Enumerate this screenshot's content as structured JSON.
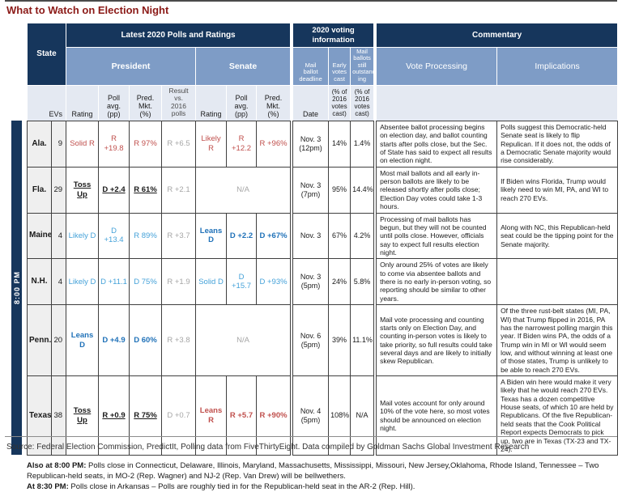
{
  "title": "What to Watch on Election Night",
  "colors": {
    "header_dark_navy": "#16365C",
    "header_medium_blue": "#7E9CC6",
    "header_light_blue": "#E4E9F2",
    "republican_red": "#C0504D",
    "democrat_blue": "#45A2D9",
    "democrat_blue_bold": "#1F71B8",
    "muted_gray": "#A6A6A6",
    "title_red": "#8B1A17",
    "state_column_gray": "#EFEFEF"
  },
  "table": {
    "time_label": "8:00 PM",
    "header": {
      "state": "State",
      "polls_group": "Latest 2020 Polls and Ratings",
      "voting_group": "2020 voting\ninformation",
      "commentary_group": "Commentary",
      "president": "President",
      "senate": "Senate",
      "mail_deadline": "Mail\nballot\ndeadline",
      "early_votes": "Early\nvotes\ncast",
      "mail_outstanding": "Mail\nballots\nstill\noutstand\ning",
      "vote_processing": "Vote Processing",
      "implications": "Implications",
      "evs": "EVs",
      "rating": "Rating",
      "poll_avg": "Poll avg.\n(pp)",
      "pred_mkt": "Pred. Mkt.\n(%)",
      "result_vs": "Result vs.\n2016 polls",
      "date": "Date",
      "pct_of_2016": "(% of\n2016\nvotes\ncast)"
    },
    "rows": [
      {
        "state": "Ala.",
        "evs": "9",
        "p_rating": "Solid R",
        "p_poll": "R +19.8",
        "p_mkt": "R 97%",
        "p_style": "red",
        "p_result": "R +6.5",
        "s_na": false,
        "s_rating": "Likely R",
        "s_poll": "R +12.2",
        "s_mkt": "R +96%",
        "s_style": "red",
        "date": "Nov. 3\n(12pm)",
        "early": "14%",
        "mail_out": "1.4%",
        "vote_processing": "Absentee ballot processing begins on election day, and ballot counting starts after polls close, but the Sec. of State has said to expect all results on election night.",
        "implications": "Polls suggest this Democratic-held Senate seat is likely to flip Repulican.  If it does not, the odds of a Democratic Senate majority would rise considerably."
      },
      {
        "state": "Fla.",
        "evs": "29",
        "p_rating": "Toss\nUp",
        "p_poll": "D +2.4",
        "p_mkt": "R 61%",
        "p_style": "tossup",
        "p_result": "R +2.1",
        "s_na": true,
        "s_rating": "N/A",
        "s_poll": "",
        "s_mkt": "",
        "s_style": "gray",
        "date": "Nov. 3\n(7pm)",
        "early": "95%",
        "mail_out": "14.4%",
        "vote_processing": "Most mail ballots and all early in-person ballots are likely to be released shortly after polls close; Election Day votes could take 1-3 hours.",
        "implications": "If Biden wins Florida, Trump would likely need to win MI, PA, and WI to reach 270 EVs."
      },
      {
        "state": "Maine",
        "evs": "4",
        "p_rating": "Likely D",
        "p_poll": "D +13.4",
        "p_mkt": "R 89%",
        "p_style": "blue",
        "p_result": "R +3.7",
        "s_na": false,
        "s_rating": "Leans D",
        "s_poll": "D +2.2",
        "s_mkt": "D +67%",
        "s_style": "bluebold",
        "date": "Nov. 3",
        "early": "67%",
        "mail_out": "4.2%",
        "vote_processing": "Processing of mail ballots has begun, but they will not be counted until polls close. However, officials say to expect full results election night.",
        "implications": "Along with NC, this Republican-held seat could be the tipping point for the Senate majority."
      },
      {
        "state": "N.H.",
        "evs": "4",
        "p_rating": "Likely D",
        "p_poll": "D +11.1",
        "p_mkt": "D 75%",
        "p_style": "blue",
        "p_result": "R +1.9",
        "s_na": false,
        "s_rating": "Solid D",
        "s_poll": "D +15.7",
        "s_mkt": "D +93%",
        "s_style": "blue",
        "date": "Nov. 3\n(5pm)",
        "early": "24%",
        "mail_out": "5.8%",
        "vote_processing": "Only around 25% of votes are likely to come via absentee ballots and there is no early in-person voting, so reporting should be similar to other years.",
        "implications": ""
      },
      {
        "state": "Penn.",
        "evs": "20",
        "p_rating": "Leans D",
        "p_poll": "D +4.9",
        "p_mkt": "D 60%",
        "p_style": "bluebold",
        "p_result": "R +3.8",
        "s_na": true,
        "s_rating": "N/A",
        "s_poll": "",
        "s_mkt": "",
        "s_style": "gray",
        "date": "Nov. 6\n(5pm)",
        "early": "39%",
        "mail_out": "11.1%",
        "vote_processing": "Mail vote processing and counting starts only on Election Day, and counting in-person votes is likely to take priority, so full results could take several days and are likely to initially skew Republican.",
        "implications": "Of the three rust-belt states (MI, PA, WI) that Trump flipped in 2016, PA has the narrowest polling margin this year. If Biden wins PA, the odds of a Trump win in MI or WI would seem low, and without winning at least one of those states, Trump is unlikely to be able to reach 270 EVs."
      },
      {
        "state": "Texas",
        "evs": "38",
        "p_rating": "Toss\nUp",
        "p_poll": "R +0.9",
        "p_mkt": "R 75%",
        "p_style": "tossup",
        "p_result": "D +0.7",
        "s_na": false,
        "s_rating": "Leans R",
        "s_poll": "R +5.7",
        "s_mkt": "R +90%",
        "s_style": "redbold",
        "date": "Nov. 4\n(5pm)",
        "early": "108%",
        "mail_out": "N/A",
        "vote_processing": "Mail votes account for only around 10% of the vote here, so most votes should be announced on election night.",
        "implications": "A Biden win here would make it very likely that he would reach 270 EVs. Texas has a dozen competitive House seats, of which 10 are held by Republicans. Of the five Republican-held seats that the Cook Political Report expects Democrats to pick up, two are in Texas (TX-23 and TX-24)."
      }
    ]
  },
  "footnotes": [
    {
      "prefix": "Also at 8:00 PM:",
      "text": " Polls close in Connecticut, Delaware, Illinois, Maryland, Massachusetts, Mississippi, Missouri, New Jersey,Oklahoma, Rhode Island,  Tennessee – Two Republican-held seats, in MO-2 (Rep. Wagner) and NJ-2 (Rep. Van Drew) will be bellwethers."
    },
    {
      "prefix": "At 8:30 PM:",
      "text": " Polls close in Arkansas – Polls are roughly tied in for the Republican-held seat in the AR-2 (Rep. Hill)."
    }
  ],
  "source": "Source: Federal Election Commission, PredictIt, Polling data from FiveThirtyEight. Data compiled by Goldman Sachs Global Investment Research"
}
